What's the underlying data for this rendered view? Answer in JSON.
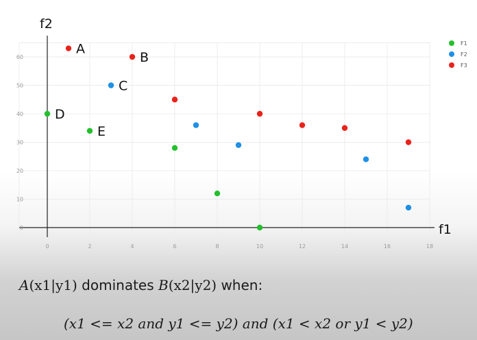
{
  "chart_data": {
    "type": "scatter",
    "xlabel": "f1",
    "ylabel": "f2",
    "xlim": [
      0,
      18
    ],
    "ylim": [
      0,
      60
    ],
    "x_ticks": [
      0,
      2,
      4,
      6,
      8,
      10,
      12,
      14,
      16,
      18
    ],
    "y_ticks": [
      0,
      10,
      20,
      30,
      40,
      50,
      60
    ],
    "grid": true,
    "legend_position": "top-right",
    "series": [
      {
        "name": "F1",
        "color": "#22c02c",
        "points": [
          {
            "x": 0,
            "y": 40,
            "label": "D"
          },
          {
            "x": 2,
            "y": 34,
            "label": "E"
          },
          {
            "x": 6,
            "y": 28
          },
          {
            "x": 8,
            "y": 12
          },
          {
            "x": 10,
            "y": 0
          }
        ]
      },
      {
        "name": "F2",
        "color": "#1e90e6",
        "points": [
          {
            "x": 3,
            "y": 50,
            "label": "C"
          },
          {
            "x": 7,
            "y": 36
          },
          {
            "x": 9,
            "y": 29
          },
          {
            "x": 15,
            "y": 24
          },
          {
            "x": 17,
            "y": 7
          }
        ]
      },
      {
        "name": "F3",
        "color": "#e8231b",
        "points": [
          {
            "x": 1,
            "y": 63,
            "label": "A"
          },
          {
            "x": 4,
            "y": 60,
            "label": "B"
          },
          {
            "x": 6,
            "y": 45
          },
          {
            "x": 10,
            "y": 40
          },
          {
            "x": 12,
            "y": 36
          },
          {
            "x": 14,
            "y": 35
          },
          {
            "x": 17,
            "y": 30
          }
        ]
      }
    ]
  },
  "text": {
    "line1": {
      "a": "A",
      "a_args": "(x1|y1)",
      "verb": " dominates ",
      "b": "B",
      "b_args": "(x2|y2)",
      "tail": " when:"
    },
    "line2": "(x1 <= x2 and y1 <= y2) and (x1 < x2 or y1 < y2)"
  }
}
